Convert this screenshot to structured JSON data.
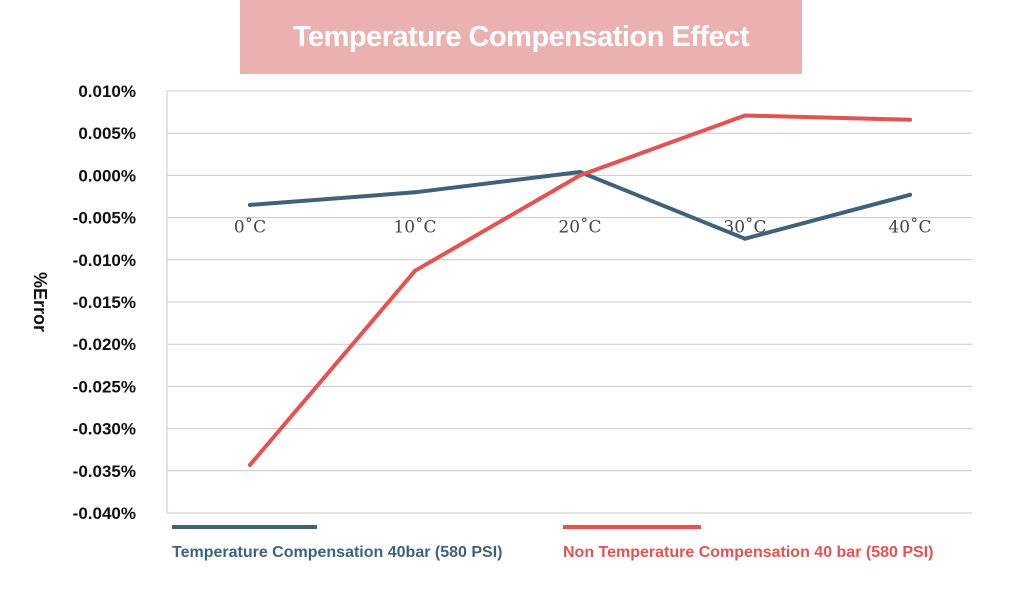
{
  "chart_data": {
    "type": "line",
    "title": "Temperature Compensation Effect",
    "xlabel": "",
    "ylabel": "%Error",
    "categories": [
      "0˚C",
      "10˚C",
      "20˚C",
      "30˚C",
      "40˚C"
    ],
    "ylim": [
      -0.04,
      0.01
    ],
    "yticks": [
      0.01,
      0.005,
      0.0,
      -0.005,
      -0.01,
      -0.015,
      -0.02,
      -0.025,
      -0.03,
      -0.035,
      -0.04
    ],
    "ytick_labels": [
      "0.010%",
      "0.005%",
      "0.000%",
      "-0.005%",
      "-0.010%",
      "-0.015%",
      "-0.020%",
      "-0.025%",
      "-0.030%",
      "-0.035%",
      "-0.040%"
    ],
    "grid": true,
    "legend_position": "bottom",
    "series": [
      {
        "name": "Temperature Compensation 40bar (580 PSI)",
        "color": "#3f6279",
        "values": [
          -0.0035,
          -0.002,
          0.0004,
          -0.0075,
          -0.0023
        ]
      },
      {
        "name": "Non Temperature Compensation 40 bar (580 PSI)",
        "color": "#e55252",
        "values": [
          -0.0343,
          -0.0113,
          0.0,
          0.0071,
          0.0066
        ]
      }
    ]
  }
}
